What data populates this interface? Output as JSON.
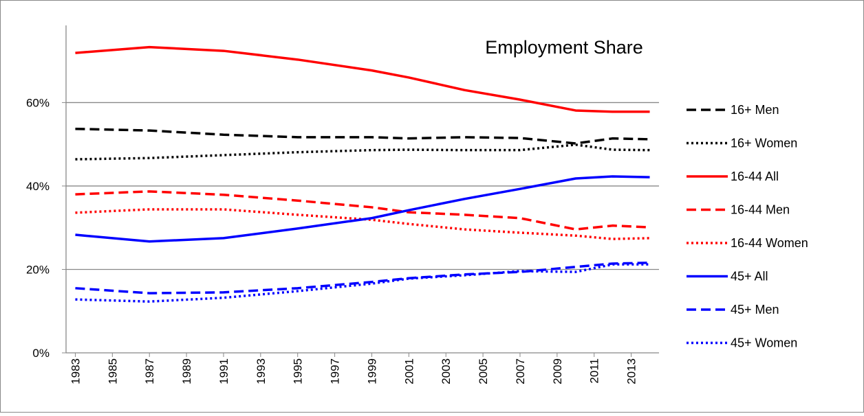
{
  "chart_data": {
    "type": "line",
    "title": "Employment Share",
    "x": [
      1983,
      1987,
      1991,
      1995,
      1999,
      2001,
      2004,
      2007,
      2010,
      2012,
      2014
    ],
    "xlim": [
      1982.5,
      2014.5
    ],
    "xticks": [
      1983,
      1985,
      1987,
      1989,
      1991,
      1993,
      1995,
      1997,
      1999,
      2001,
      2003,
      2005,
      2007,
      2009,
      2011,
      2013
    ],
    "ylim": [
      0,
      78.5
    ],
    "yticks": [
      {
        "value": 0,
        "label": "0%"
      },
      {
        "value": 20,
        "label": "20%"
      },
      {
        "value": 40,
        "label": "40%"
      },
      {
        "value": 60,
        "label": "60%"
      }
    ],
    "grid": true,
    "legend": "right",
    "series": [
      {
        "name": "16+ Men",
        "color": "#000000",
        "dash": "dashed",
        "values": [
          53.7,
          53.3,
          52.3,
          51.7,
          51.7,
          51.4,
          51.7,
          51.5,
          50.2,
          51.4,
          51.2
        ]
      },
      {
        "name": "16+ Women",
        "color": "#000000",
        "dash": "dotted",
        "values": [
          46.4,
          46.7,
          47.4,
          48.1,
          48.6,
          48.7,
          48.6,
          48.6,
          49.9,
          48.7,
          48.6
        ]
      },
      {
        "name": "16-44 All",
        "color": "#ff0000",
        "dash": "solid",
        "values": [
          71.9,
          73.3,
          72.4,
          70.3,
          67.7,
          66.0,
          63.0,
          60.7,
          58.1,
          57.8,
          57.8
        ]
      },
      {
        "name": "16-44 Men",
        "color": "#ff0000",
        "dash": "dashed",
        "values": [
          38.0,
          38.7,
          37.9,
          36.5,
          34.9,
          33.7,
          33.1,
          32.3,
          29.6,
          30.5,
          30.1
        ]
      },
      {
        "name": "16-44 Women",
        "color": "#ff0000",
        "dash": "dotted",
        "values": [
          33.6,
          34.4,
          34.4,
          33.1,
          31.9,
          30.9,
          29.6,
          28.8,
          28.1,
          27.3,
          27.5
        ]
      },
      {
        "name": "45+ All",
        "color": "#0000ff",
        "dash": "solid",
        "values": [
          28.3,
          26.7,
          27.5,
          29.8,
          32.3,
          34.2,
          36.9,
          39.3,
          41.8,
          42.3,
          42.1
        ]
      },
      {
        "name": "45+ Men",
        "color": "#0000ff",
        "dash": "dashed",
        "values": [
          15.5,
          14.3,
          14.5,
          15.5,
          17.0,
          17.9,
          18.8,
          19.4,
          20.6,
          21.4,
          21.6
        ]
      },
      {
        "name": "45+ Women",
        "color": "#0000ff",
        "dash": "dotted",
        "values": [
          12.8,
          12.3,
          13.2,
          14.8,
          16.6,
          17.8,
          18.6,
          19.6,
          19.4,
          21.2,
          21.2
        ]
      }
    ]
  }
}
